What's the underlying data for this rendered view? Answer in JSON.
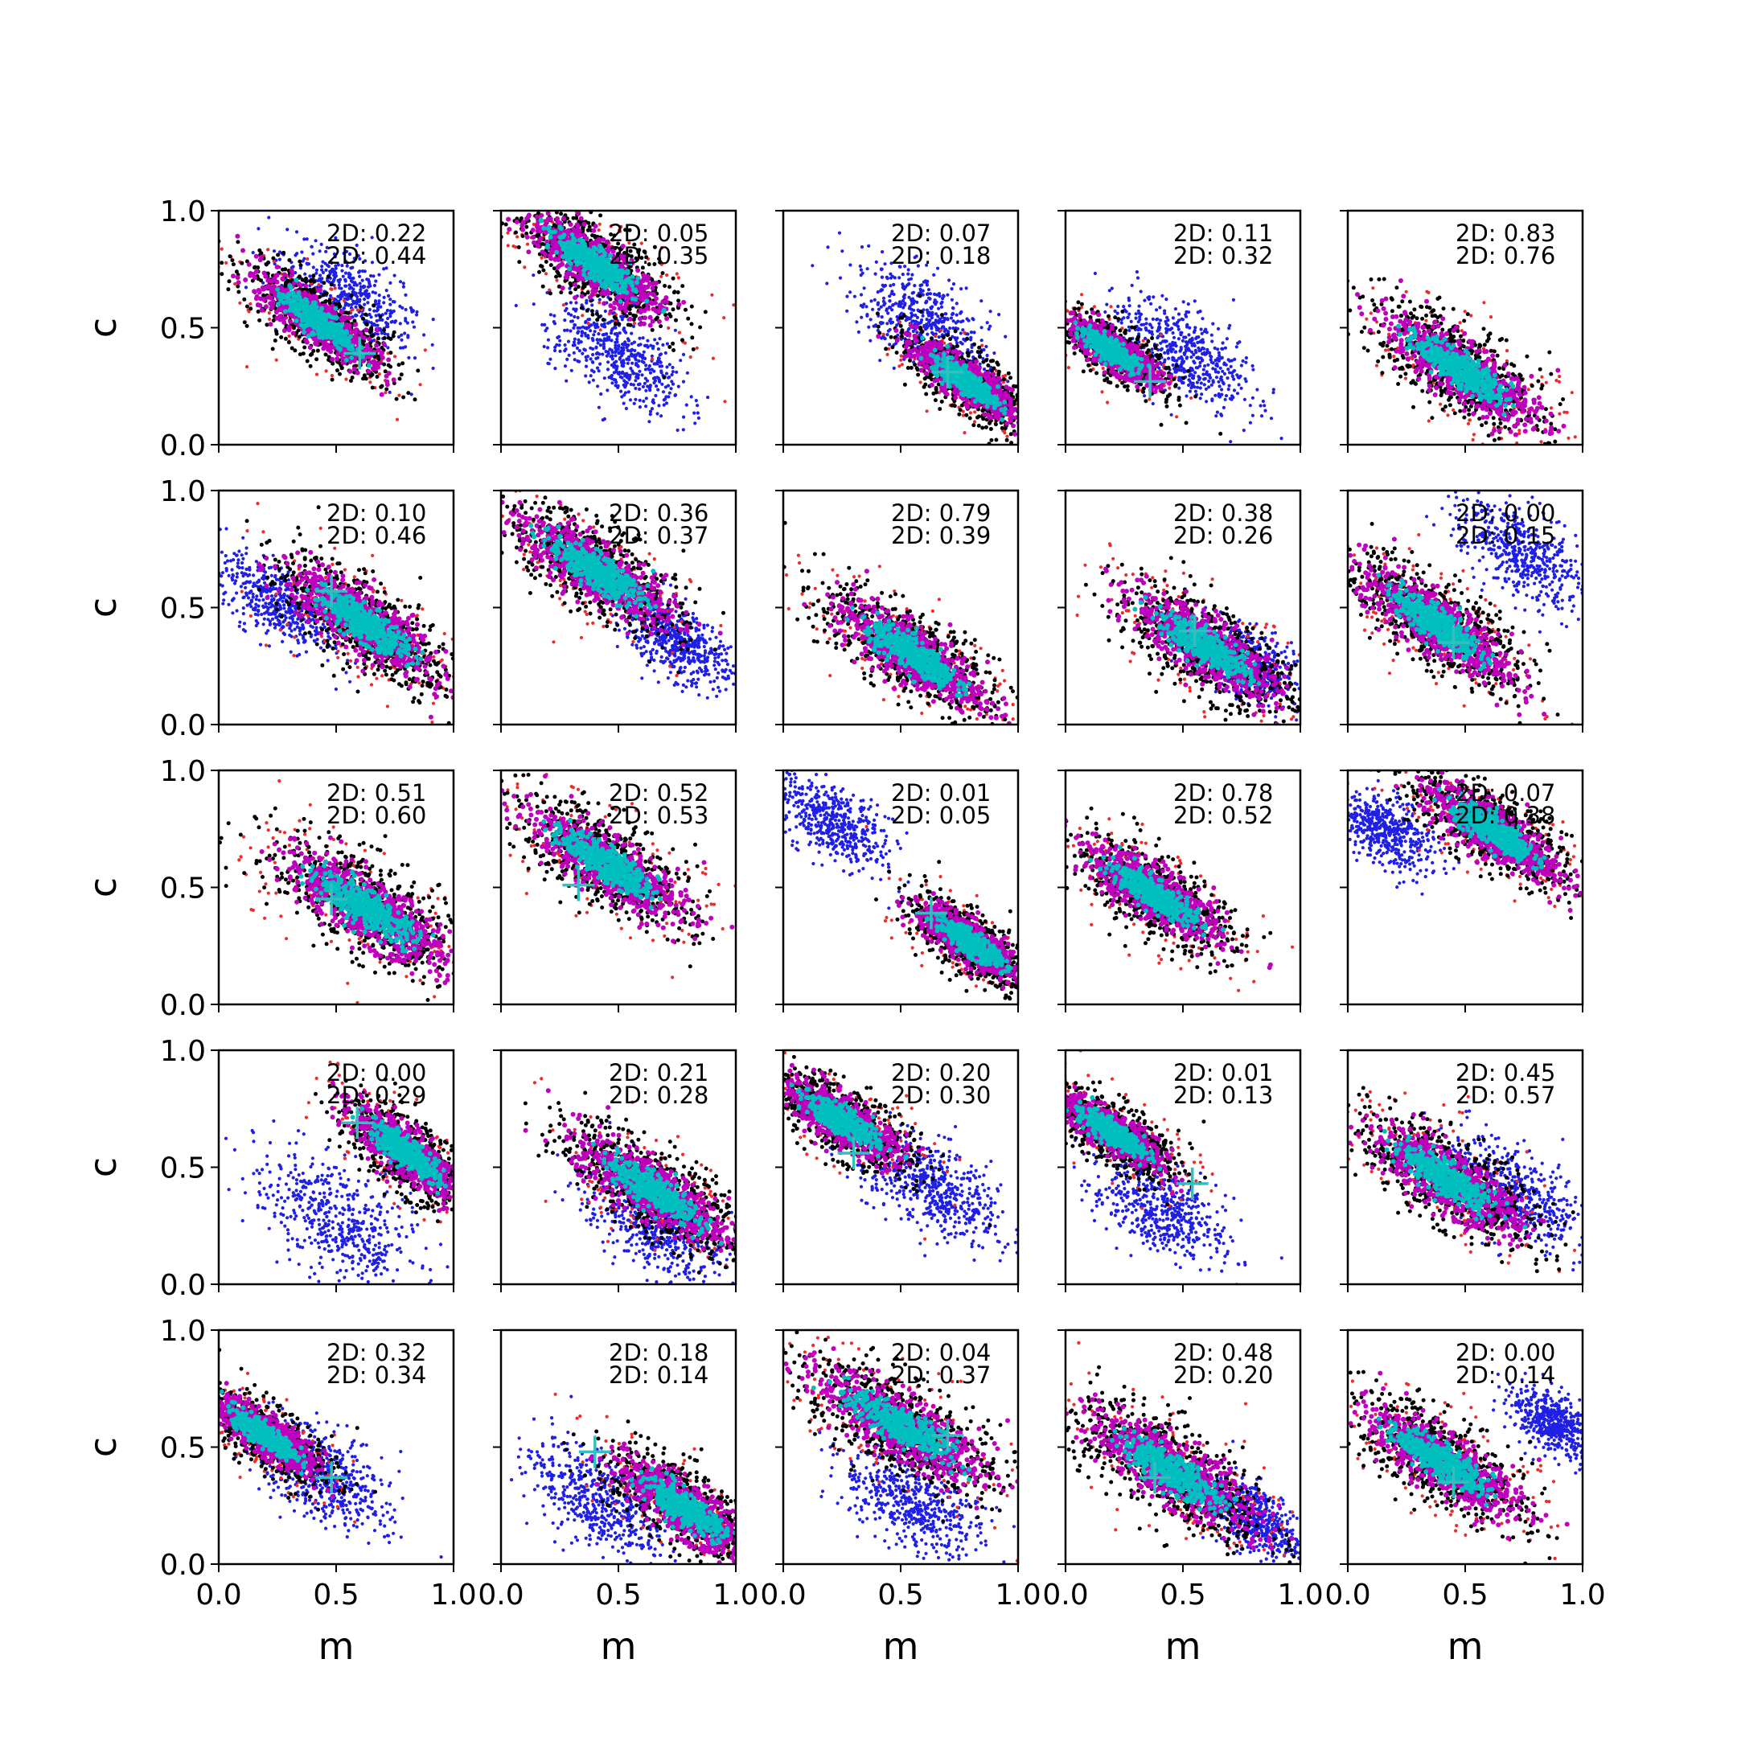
{
  "chart_data": {
    "type": "scatter",
    "layout": "5x5 grid of small multiples",
    "xlabel": "m",
    "ylabel": "c",
    "xlim": [
      0,
      1
    ],
    "ylim": [
      0,
      1
    ],
    "xticks": [
      "0.0",
      "0.5",
      "1.0"
    ],
    "yticks": [
      "0.0",
      "0.5",
      "1.0"
    ],
    "colors": {
      "blue": "#1f1fe6",
      "red": "#ee2b2b",
      "black": "#000000",
      "magenta": "#bf00bf",
      "cyan": "#00bfbf",
      "marker": "#33bfbf"
    },
    "panels": [
      {
        "ann": [
          "2D: 0.22",
          "2D: 0.44"
        ],
        "truth": [
          0.6,
          0.39
        ],
        "main": {
          "m": 0.42,
          "c": 0.53,
          "spread": 0.4,
          "slope": -0.73
        },
        "blue": {
          "m": 0.55,
          "c": 0.62,
          "spread": 0.4
        }
      },
      {
        "ann": [
          "2D: 0.05",
          "2D: 0.35"
        ],
        "truth": null,
        "main": {
          "m": 0.4,
          "c": 0.77,
          "spread": 0.45,
          "slope": -0.7
        },
        "blue": {
          "m": 0.5,
          "c": 0.38,
          "spread": 0.4
        }
      },
      {
        "ann": [
          "2D: 0.07",
          "2D: 0.18"
        ],
        "truth": [
          0.7,
          0.31
        ],
        "main": {
          "m": 0.78,
          "c": 0.27,
          "spread": 0.35,
          "slope": -0.7
        },
        "blue": {
          "m": 0.6,
          "c": 0.53,
          "spread": 0.4
        }
      },
      {
        "ann": [
          "2D: 0.11",
          "2D: 0.32"
        ],
        "truth": [
          0.36,
          0.27
        ],
        "main": {
          "m": 0.2,
          "c": 0.4,
          "spread": 0.3,
          "slope": -0.65
        },
        "blue": {
          "m": 0.5,
          "c": 0.4,
          "spread": 0.4
        }
      },
      {
        "ann": [
          "2D: 0.83",
          "2D: 0.76"
        ],
        "truth": null,
        "main": {
          "m": 0.48,
          "c": 0.32,
          "spread": 0.5,
          "slope": -0.68
        },
        "blue": null
      },
      {
        "ann": [
          "2D: 0.10",
          "2D: 0.46"
        ],
        "truth": [
          0.48,
          0.57
        ],
        "main": {
          "m": 0.62,
          "c": 0.43,
          "spread": 0.5,
          "slope": -0.7
        },
        "blue": {
          "m": 0.25,
          "c": 0.52,
          "spread": 0.35
        }
      },
      {
        "ann": [
          "2D: 0.36",
          "2D: 0.37"
        ],
        "truth": null,
        "main": {
          "m": 0.4,
          "c": 0.66,
          "spread": 0.5,
          "slope": -0.65
        },
        "blue": {
          "m": 0.75,
          "c": 0.35,
          "spread": 0.3
        }
      },
      {
        "ann": [
          "2D: 0.79",
          "2D: 0.39"
        ],
        "truth": null,
        "main": {
          "m": 0.55,
          "c": 0.3,
          "spread": 0.5,
          "slope": -0.65
        },
        "blue": null
      },
      {
        "ann": [
          "2D: 0.38",
          "2D: 0.26"
        ],
        "truth": [
          0.55,
          0.4
        ],
        "main": {
          "m": 0.6,
          "c": 0.33,
          "spread": 0.5,
          "slope": -0.65
        },
        "blue": {
          "m": 0.78,
          "c": 0.26,
          "spread": 0.3
        }
      },
      {
        "ann": [
          "2D: 0.00",
          "2D: 0.15"
        ],
        "truth": [
          0.45,
          0.35
        ],
        "main": {
          "m": 0.38,
          "c": 0.43,
          "spread": 0.5,
          "slope": -0.7
        },
        "blue": {
          "m": 0.75,
          "c": 0.73,
          "spread": 0.4
        }
      },
      {
        "ann": [
          "2D: 0.51",
          "2D: 0.60"
        ],
        "truth": [
          0.48,
          0.45
        ],
        "main": {
          "m": 0.63,
          "c": 0.41,
          "spread": 0.55,
          "slope": -0.65
        },
        "blue": null
      },
      {
        "ann": [
          "2D: 0.52",
          "2D: 0.53"
        ],
        "truth": [
          0.33,
          0.51
        ],
        "main": {
          "m": 0.45,
          "c": 0.6,
          "spread": 0.5,
          "slope": -0.65
        },
        "blue": null
      },
      {
        "ann": [
          "2D: 0.01",
          "2D: 0.05"
        ],
        "truth": [
          0.63,
          0.39
        ],
        "main": {
          "m": 0.8,
          "c": 0.26,
          "spread": 0.35,
          "slope": -0.7
        },
        "blue": {
          "m": 0.2,
          "c": 0.78,
          "spread": 0.35
        }
      },
      {
        "ann": [
          "2D: 0.78",
          "2D: 0.52"
        ],
        "truth": null,
        "main": {
          "m": 0.38,
          "c": 0.47,
          "spread": 0.45,
          "slope": -0.65
        },
        "blue": null
      },
      {
        "ann": [
          "2D: 0.07",
          "2D: 0.38"
        ],
        "truth": null,
        "main": {
          "m": 0.62,
          "c": 0.74,
          "spread": 0.45,
          "slope": -0.65
        },
        "blue": {
          "m": 0.15,
          "c": 0.75,
          "spread": 0.3
        }
      },
      {
        "ann": [
          "2D: 0.00",
          "2D: 0.29"
        ],
        "truth": [
          0.59,
          0.69
        ],
        "main": {
          "m": 0.8,
          "c": 0.56,
          "spread": 0.4,
          "slope": -0.8
        },
        "blue": {
          "m": 0.5,
          "c": 0.27,
          "spread": 0.5
        }
      },
      {
        "ann": [
          "2D: 0.21",
          "2D: 0.28"
        ],
        "truth": null,
        "main": {
          "m": 0.65,
          "c": 0.4,
          "spread": 0.5,
          "slope": -0.65
        },
        "blue": {
          "m": 0.65,
          "c": 0.25,
          "spread": 0.4
        }
      },
      {
        "ann": [
          "2D: 0.20",
          "2D: 0.30"
        ],
        "truth": [
          0.3,
          0.56
        ],
        "main": {
          "m": 0.25,
          "c": 0.7,
          "spread": 0.4,
          "slope": -0.6
        },
        "blue": {
          "m": 0.65,
          "c": 0.4,
          "spread": 0.4
        }
      },
      {
        "ann": [
          "2D: 0.01",
          "2D: 0.13"
        ],
        "truth": [
          0.54,
          0.43
        ],
        "main": {
          "m": 0.2,
          "c": 0.65,
          "spread": 0.35,
          "slope": -0.65
        },
        "blue": {
          "m": 0.4,
          "c": 0.33,
          "spread": 0.4
        }
      },
      {
        "ann": [
          "2D: 0.45",
          "2D: 0.57"
        ],
        "truth": null,
        "main": {
          "m": 0.42,
          "c": 0.45,
          "spread": 0.5,
          "slope": -0.65
        },
        "blue": {
          "m": 0.7,
          "c": 0.4,
          "spread": 0.4
        }
      },
      {
        "ann": [
          "2D: 0.32",
          "2D: 0.34"
        ],
        "truth": [
          0.48,
          0.37
        ],
        "main": {
          "m": 0.2,
          "c": 0.55,
          "spread": 0.35,
          "slope": -0.7
        },
        "blue": {
          "m": 0.45,
          "c": 0.37,
          "spread": 0.4
        }
      },
      {
        "ann": [
          "2D: 0.18",
          "2D: 0.14"
        ],
        "truth": [
          0.4,
          0.48
        ],
        "main": {
          "m": 0.78,
          "c": 0.24,
          "spread": 0.45,
          "slope": -0.7
        },
        "blue": {
          "m": 0.4,
          "c": 0.28,
          "spread": 0.4
        }
      },
      {
        "ann": [
          "2D: 0.04",
          "2D: 0.37"
        ],
        "truth": [
          0.7,
          0.55
        ],
        "main": {
          "m": 0.5,
          "c": 0.59,
          "spread": 0.55,
          "slope": -0.6
        },
        "blue": {
          "m": 0.55,
          "c": 0.25,
          "spread": 0.4
        }
      },
      {
        "ann": [
          "2D: 0.48",
          "2D: 0.20"
        ],
        "truth": [
          0.38,
          0.37
        ],
        "main": {
          "m": 0.45,
          "c": 0.4,
          "spread": 0.55,
          "slope": -0.65
        },
        "blue": {
          "m": 0.8,
          "c": 0.2,
          "spread": 0.3
        }
      },
      {
        "ann": [
          "2D: 0.00",
          "2D: 0.14"
        ],
        "truth": [
          0.45,
          0.35
        ],
        "main": {
          "m": 0.4,
          "c": 0.44,
          "spread": 0.5,
          "slope": -0.65
        },
        "blue": {
          "m": 0.88,
          "c": 0.6,
          "spread": 0.25
        }
      }
    ]
  }
}
